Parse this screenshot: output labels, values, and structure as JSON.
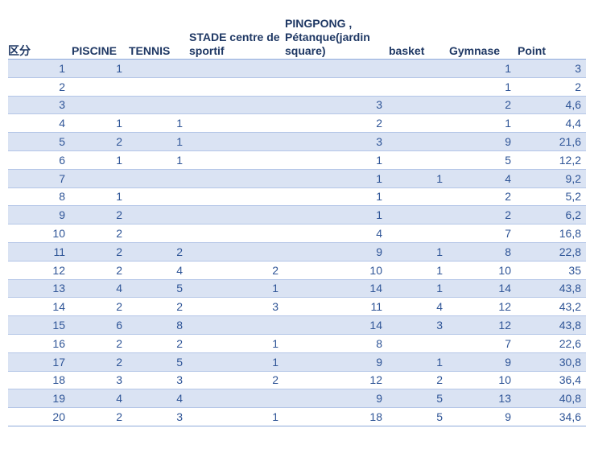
{
  "table": {
    "headers": [
      "区分",
      "PISCINE",
      "TENNIS",
      "STADE centre de sportif",
      "PINGPONG , Pétanque(jardin square)",
      "basket",
      "Gymnase",
      "Point"
    ],
    "rows": [
      [
        "1",
        "1",
        "",
        "",
        "",
        "",
        "1",
        "3"
      ],
      [
        "2",
        "",
        "",
        "",
        "",
        "",
        "1",
        "2"
      ],
      [
        "3",
        "",
        "",
        "",
        "3",
        "",
        "2",
        "4,6"
      ],
      [
        "4",
        "1",
        "1",
        "",
        "2",
        "",
        "1",
        "4,4"
      ],
      [
        "5",
        "2",
        "1",
        "",
        "3",
        "",
        "9",
        "21,6"
      ],
      [
        "6",
        "1",
        "1",
        "",
        "1",
        "",
        "5",
        "12,2"
      ],
      [
        "7",
        "",
        "",
        "",
        "1",
        "1",
        "4",
        "9,2"
      ],
      [
        "8",
        "1",
        "",
        "",
        "1",
        "",
        "2",
        "5,2"
      ],
      [
        "9",
        "2",
        "",
        "",
        "1",
        "",
        "2",
        "6,2"
      ],
      [
        "10",
        "2",
        "",
        "",
        "4",
        "",
        "7",
        "16,8"
      ],
      [
        "11",
        "2",
        "2",
        "",
        "9",
        "1",
        "8",
        "22,8"
      ],
      [
        "12",
        "2",
        "4",
        "2",
        "10",
        "1",
        "10",
        "35"
      ],
      [
        "13",
        "4",
        "5",
        "1",
        "14",
        "1",
        "14",
        "43,8"
      ],
      [
        "14",
        "2",
        "2",
        "3",
        "11",
        "4",
        "12",
        "43,2"
      ],
      [
        "15",
        "6",
        "8",
        "",
        "14",
        "3",
        "12",
        "43,8"
      ],
      [
        "16",
        "2",
        "2",
        "1",
        "8",
        "",
        "7",
        "22,6"
      ],
      [
        "17",
        "2",
        "5",
        "1",
        "9",
        "1",
        "9",
        "30,8"
      ],
      [
        "18",
        "3",
        "3",
        "2",
        "12",
        "2",
        "10",
        "36,4"
      ],
      [
        "19",
        "4",
        "4",
        "",
        "9",
        "5",
        "13",
        "40,8"
      ],
      [
        "20",
        "2",
        "3",
        "1",
        "18",
        "5",
        "9",
        "34,6"
      ]
    ]
  }
}
